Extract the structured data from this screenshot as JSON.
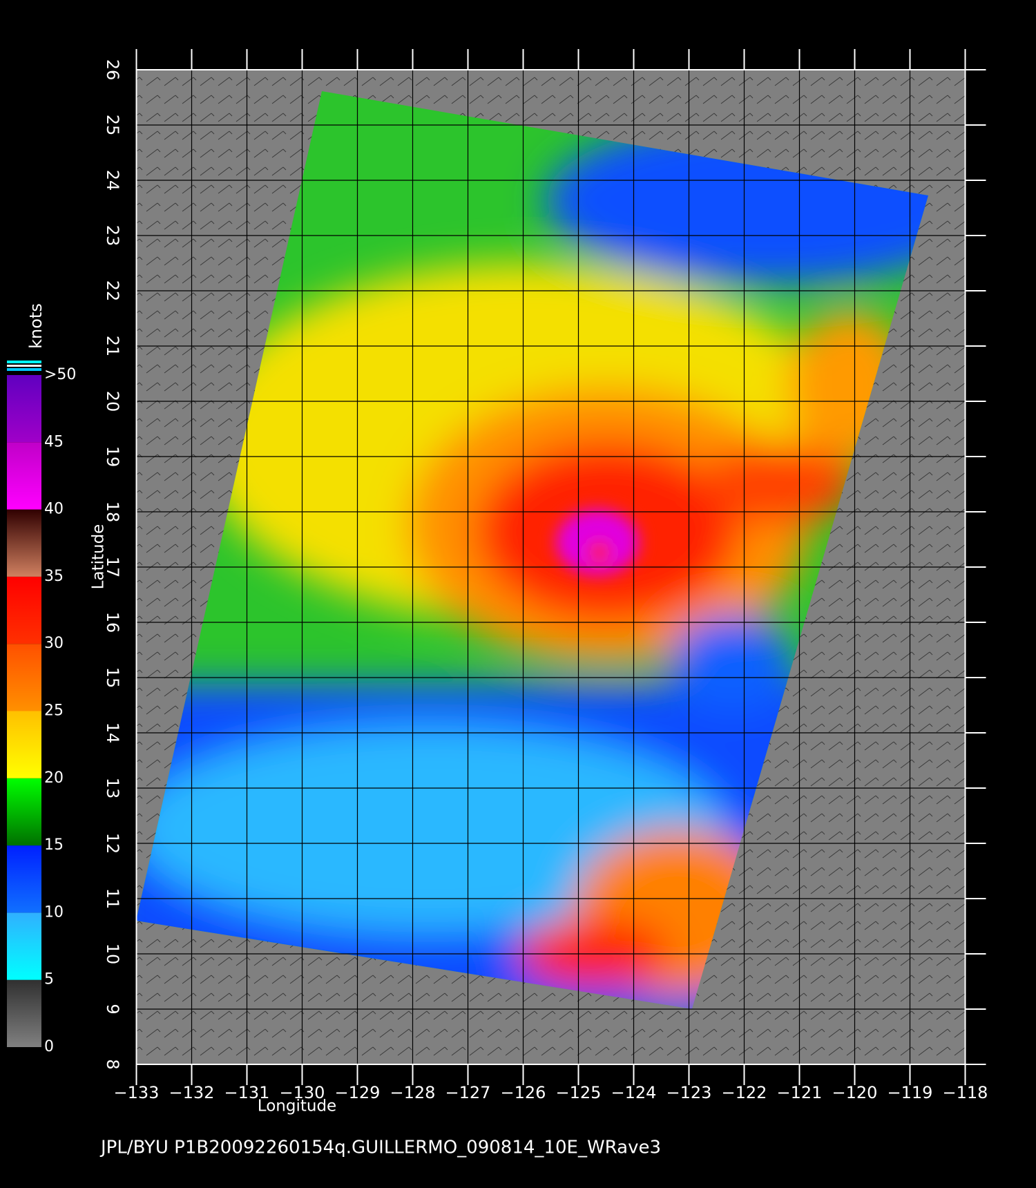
{
  "map": {
    "title": "JPL/BYU  P1B20092260154q.GUILLERMO_090814_10E_WRave3",
    "xlabel": "Longitude",
    "ylabel": "Latitude",
    "xlim": [
      -133,
      -118
    ],
    "ylim": [
      8,
      26
    ],
    "xticks": [
      {
        "value": -133,
        "label": "−133"
      },
      {
        "value": -132,
        "label": "−132"
      },
      {
        "value": -131,
        "label": "−131"
      },
      {
        "value": -130,
        "label": "−130"
      },
      {
        "value": -129,
        "label": "−129"
      },
      {
        "value": -128,
        "label": "−128"
      },
      {
        "value": -127,
        "label": "−127"
      },
      {
        "value": -126,
        "label": "−126"
      },
      {
        "value": -125,
        "label": "−125"
      },
      {
        "value": -124,
        "label": "−124"
      },
      {
        "value": -123,
        "label": "−123"
      },
      {
        "value": -122,
        "label": "−122"
      },
      {
        "value": -121,
        "label": "−121"
      },
      {
        "value": -120,
        "label": "−120"
      },
      {
        "value": -119,
        "label": "−119"
      },
      {
        "value": -118,
        "label": "−118"
      }
    ],
    "yticks": [
      8,
      9,
      10,
      11,
      12,
      13,
      14,
      15,
      16,
      17,
      18,
      19,
      20,
      21,
      22,
      23,
      24,
      25,
      26
    ],
    "grid": true,
    "colorbar": {
      "label": "knots",
      "ticks": [
        0,
        5,
        10,
        15,
        20,
        25,
        30,
        35,
        40,
        45,
        {
          "value": 50,
          "label": ">50"
        }
      ],
      "colors": [
        [
          "#808080",
          "#303030"
        ],
        [
          "#00ffff",
          "#30b0ff"
        ],
        [
          "#1070ff",
          "#0020ff"
        ],
        [
          "#007000",
          "#00ff00"
        ],
        [
          "#ffff00",
          "#ffc000"
        ],
        [
          "#ff9000",
          "#ff5000"
        ],
        [
          "#ff3000",
          "#ff0000"
        ],
        [
          "#d08060",
          "#300000"
        ],
        [
          "#ff00ff",
          "#c000c8"
        ],
        [
          "#a000c8",
          "#6000c0"
        ]
      ]
    }
  }
}
